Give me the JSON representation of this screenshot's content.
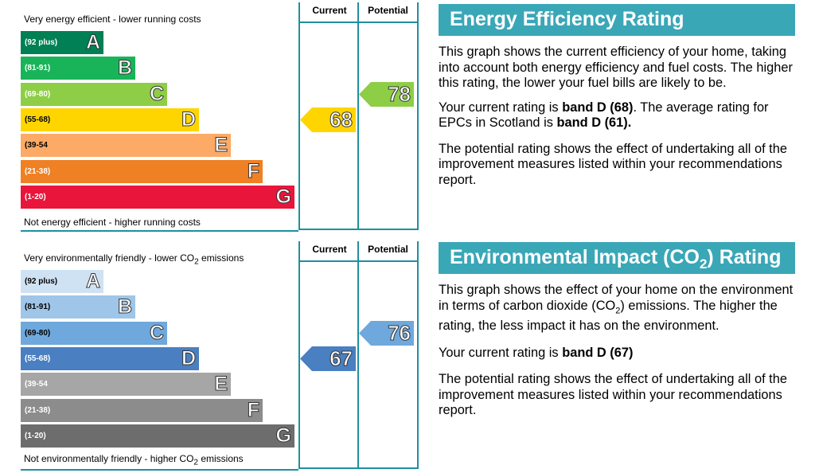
{
  "energy": {
    "title": "Energy Efficiency Rating",
    "top_label": "Very energy efficient - lower running costs",
    "bottom_label": "Not energy efficient - higher running costs",
    "col_current": "Current",
    "col_potential": "Potential",
    "description": "This graph shows the current efficiency of your home, taking into account both energy efficiency and fuel costs. The higher this rating, the lower your fuel bills are likely to be.",
    "current_text_pre": "Your current rating is ",
    "current_band_bold": "band D (68)",
    "current_text_mid": ". The average rating for EPCs in Scotland is ",
    "average_bold": "band D (61).",
    "potential_text": "The potential rating shows the effect of undertaking all of the improvement measures listed within your recommendations report."
  },
  "environment": {
    "title_pre": "Environmental Impact (CO",
    "title_sub": "2",
    "title_post": ") Rating",
    "top_label_pre": "Very environmentally friendly - lower CO",
    "top_label_sub": "2",
    "top_label_post": " emissions",
    "bottom_label_pre": "Not environmentally friendly - higher CO",
    "bottom_label_sub": "2",
    "bottom_label_post": " emissions",
    "col_current": "Current",
    "col_potential": "Potential",
    "desc_pre": "This graph shows the effect of your home on the environment in terms of carbon dioxide (CO",
    "desc_sub": "2",
    "desc_post": ") emissions. The higher the rating, the less impact it has on the environment.",
    "current_text_pre": "Your current rating is ",
    "current_band_bold": "band D (67)",
    "potential_text": "The potential rating shows the effect of undertaking all of the improvement measures listed within your recommendations report."
  },
  "chart_data": [
    {
      "type": "bar",
      "title": "Energy Efficiency Rating",
      "categories": [
        "A",
        "B",
        "C",
        "D",
        "E",
        "F",
        "G"
      ],
      "ranges": [
        "(92 plus)",
        "(81-91)",
        "(69-80)",
        "(55-68)",
        "(39-54",
        "(21-38)",
        "(1-20)"
      ],
      "colors": [
        "#008054",
        "#19b459",
        "#8dce46",
        "#ffd500",
        "#fcaa65",
        "#ef8023",
        "#e9153b"
      ],
      "current": 68,
      "potential": 78,
      "current_color": "#ffd500",
      "potential_color": "#8dce46"
    },
    {
      "type": "bar",
      "title": "Environmental Impact (CO2) Rating",
      "categories": [
        "A",
        "B",
        "C",
        "D",
        "E",
        "F",
        "G"
      ],
      "ranges": [
        "(92 plus)",
        "(81-91)",
        "(69-80)",
        "(55-68)",
        "(39-54",
        "(21-38)",
        "(1-20)"
      ],
      "colors": [
        "#cfe2f3",
        "#9fc5e8",
        "#6fa8dc",
        "#4a7fc1",
        "#a6a6a6",
        "#8c8c8c",
        "#6d6d6d"
      ],
      "current": 67,
      "potential": 76,
      "current_color": "#4a7fc1",
      "potential_color": "#6fa8dc"
    }
  ]
}
